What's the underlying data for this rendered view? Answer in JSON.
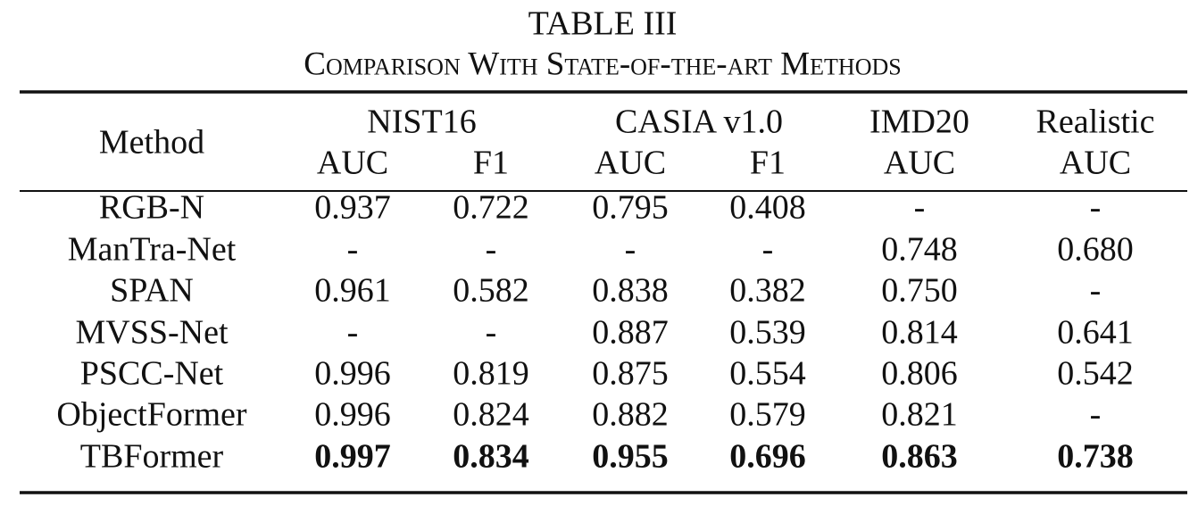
{
  "table": {
    "title": "TABLE III",
    "subtitle": "Comparison With State-of-the-art Methods",
    "method_header": "Method",
    "groups": [
      {
        "name": "NIST16",
        "metrics": [
          "AUC",
          "F1"
        ]
      },
      {
        "name": "CASIA v1.0",
        "metrics": [
          "AUC",
          "F1"
        ]
      },
      {
        "name": "IMD20",
        "metrics": [
          "AUC"
        ]
      },
      {
        "name": "Realistic",
        "metrics": [
          "AUC"
        ]
      }
    ],
    "rows": [
      {
        "method": "RGB-N",
        "values": [
          "0.937",
          "0.722",
          "0.795",
          "0.408",
          "-",
          "-"
        ]
      },
      {
        "method": "ManTra-Net",
        "values": [
          "-",
          "-",
          "-",
          "-",
          "0.748",
          "0.680"
        ]
      },
      {
        "method": "SPAN",
        "values": [
          "0.961",
          "0.582",
          "0.838",
          "0.382",
          "0.750",
          "-"
        ]
      },
      {
        "method": "MVSS-Net",
        "values": [
          "-",
          "-",
          "0.887",
          "0.539",
          "0.814",
          "0.641"
        ]
      },
      {
        "method": "PSCC-Net",
        "values": [
          "0.996",
          "0.819",
          "0.875",
          "0.554",
          "0.806",
          "0.542"
        ]
      },
      {
        "method": "ObjectFormer",
        "values": [
          "0.996",
          "0.824",
          "0.882",
          "0.579",
          "0.821",
          "-"
        ]
      },
      {
        "method": "TBFormer",
        "values": [
          "0.997",
          "0.834",
          "0.955",
          "0.696",
          "0.863",
          "0.738"
        ],
        "bold": true
      }
    ]
  }
}
